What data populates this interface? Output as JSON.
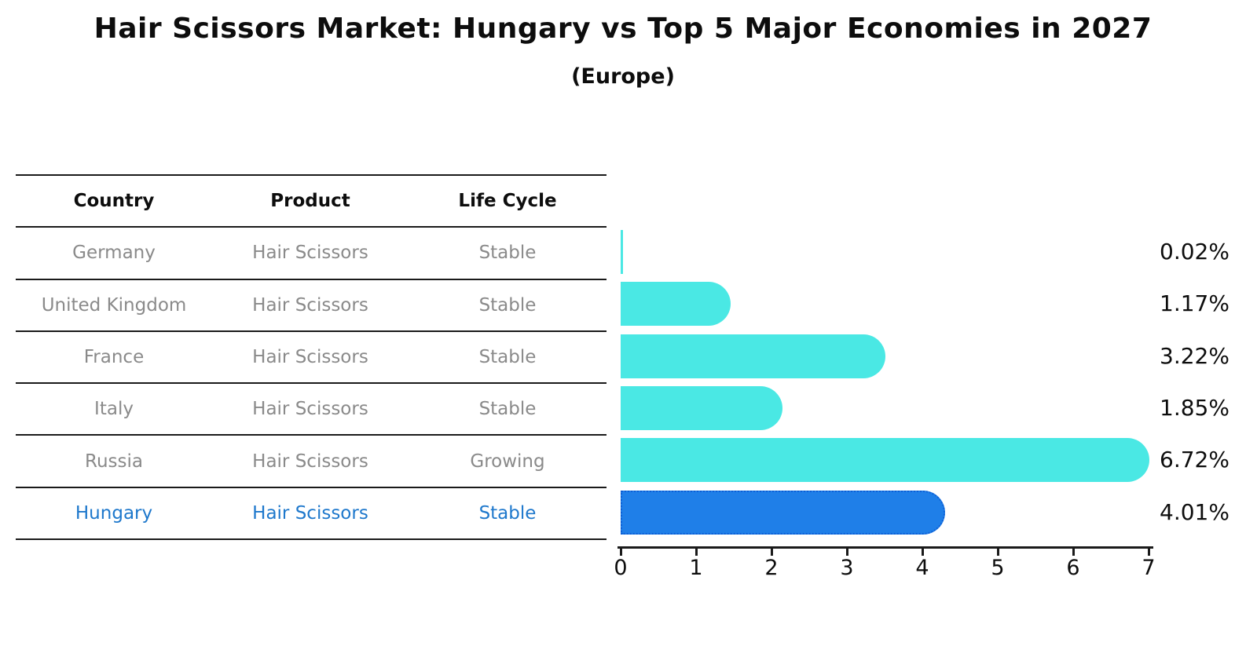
{
  "title": "Hair Scissors Market: Hungary vs Top 5 Major Economies in 2027",
  "subtitle": "(Europe)",
  "table": {
    "headers": [
      "Country",
      "Product",
      "Life Cycle"
    ],
    "rows": [
      {
        "country": "Germany",
        "product": "Hair Scissors",
        "life_cycle": "Stable",
        "highlighted": false
      },
      {
        "country": "United Kingdom",
        "product": "Hair Scissors",
        "life_cycle": "Stable",
        "highlighted": false
      },
      {
        "country": "France",
        "product": "Hair Scissors",
        "life_cycle": "Stable",
        "highlighted": false
      },
      {
        "country": "Italy",
        "product": "Hair Scissors",
        "life_cycle": "Stable",
        "highlighted": false
      },
      {
        "country": "Russia",
        "product": "Hair Scissors",
        "life_cycle": "Growing",
        "highlighted": false
      },
      {
        "country": "Hungary",
        "product": "Hair Scissors",
        "life_cycle": "Stable",
        "highlighted": true
      }
    ]
  },
  "chart_data": {
    "type": "bar",
    "orientation": "horizontal",
    "title": "Hair Scissors Market: Hungary vs Top 5 Major Economies in 2027",
    "subtitle": "(Europe)",
    "categories": [
      "Germany",
      "United Kingdom",
      "France",
      "Italy",
      "Russia",
      "Hungary"
    ],
    "values": [
      0.02,
      1.17,
      3.22,
      1.85,
      6.72,
      4.01
    ],
    "value_labels": [
      "0.02%",
      "1.17%",
      "3.22%",
      "1.85%",
      "6.72%",
      "4.01%"
    ],
    "xlim": [
      0,
      7
    ],
    "x_ticks": [
      0,
      1,
      2,
      3,
      4,
      5,
      6,
      7
    ],
    "grid": false,
    "legend": false,
    "highlight_index": 5
  },
  "colors": {
    "bar": "#4ae8e4",
    "highlight_bar": "#1f7fe8",
    "highlight_border": "#0d5fd6",
    "row_text": "#8a8a8a",
    "highlight_text": "#1e78cc",
    "axis": "#1a1a1a",
    "text": "#0d0d0d"
  }
}
